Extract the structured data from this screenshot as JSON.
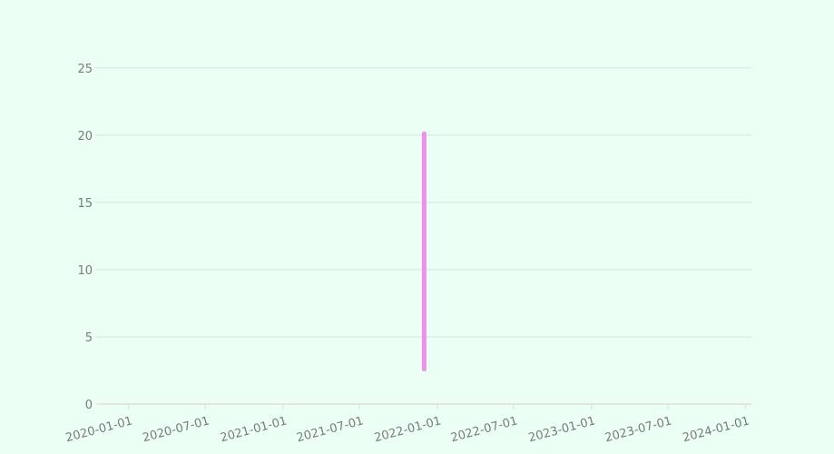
{
  "chart_data": {
    "type": "line",
    "title": "",
    "xlabel": "",
    "ylabel": "",
    "x_axis": {
      "type": "date",
      "range": [
        "2019-10-25",
        "2024-01-15"
      ],
      "ticks": [
        "2020-01-01",
        "2020-07-01",
        "2021-01-01",
        "2021-07-01",
        "2022-01-01",
        "2022-07-01",
        "2023-01-01",
        "2023-07-01",
        "2024-01-01"
      ],
      "tick_label_rotation_deg": -15
    },
    "y_axis": {
      "range": [
        0,
        26
      ],
      "ticks": [
        0,
        5,
        10,
        15,
        20,
        25
      ]
    },
    "grid": "horizontal",
    "series": [
      {
        "color": "#ee90f0",
        "points": [
          {
            "x": "2021-12-01",
            "y": 2.6
          },
          {
            "x": "2021-12-01",
            "y": 20.1
          }
        ]
      }
    ],
    "colors": {
      "background": "#ebfff5",
      "grid": "#d7e3dc",
      "tick_text": "#7a7a7a",
      "axis_line": "#e0c8c8"
    }
  }
}
